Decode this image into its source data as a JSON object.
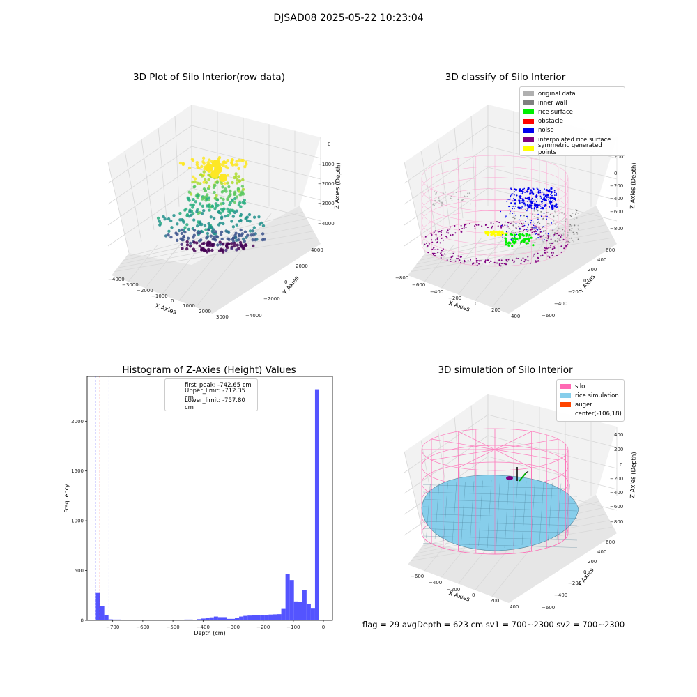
{
  "figure": {
    "suptitle": "DJSAD08 2025-05-22 10:23:04",
    "status_line": "flag = 29  avgDepth = 623 cm  sv1 = 700~2300  sv2 = 700~2300"
  },
  "panels": {
    "raw": {
      "title": "3D Plot of Silo Interior(row data)",
      "xlabel": "X Axies",
      "ylabel": "Y Axies",
      "zlabel": "Z Axies (Depth)",
      "xticks": [
        "−4000",
        "−3000",
        "−2000",
        "−1000",
        "0",
        "1000",
        "2000",
        "3000"
      ],
      "yticks": [
        "−4000",
        "−2000",
        "0",
        "2000",
        "4000"
      ],
      "zticks": [
        "0",
        "−1000",
        "−2000",
        "−3000",
        "−4000"
      ]
    },
    "classify": {
      "title": "3D classify of Silo Interior",
      "xlabel": "X Axies",
      "ylabel": "Y Axies",
      "zlabel": "Z Axies (Depth)",
      "xticks": [
        "−800",
        "−600",
        "−400",
        "−200",
        "0",
        "200",
        "400"
      ],
      "yticks": [
        "−600",
        "−400",
        "−200",
        "0",
        "200",
        "400",
        "600"
      ],
      "zticks": [
        "200",
        "0",
        "−200",
        "−400",
        "−600",
        "−800"
      ],
      "legend": [
        {
          "label": "original data",
          "color": "#b0b0b0"
        },
        {
          "label": "inner wall",
          "color": "#808080"
        },
        {
          "label": "rice surface",
          "color": "#00ee00"
        },
        {
          "label": "obstacle",
          "color": "#ff0000"
        },
        {
          "label": "noise",
          "color": "#0000ee"
        },
        {
          "label": "interpolated rice surface",
          "color": "#800080"
        },
        {
          "label": "symmetric generated points",
          "color": "#ffff00"
        }
      ]
    },
    "histogram": {
      "title": "Histogram of Z-Axies (Height) Values",
      "xlabel": "Depth (cm)",
      "ylabel": "Frequency",
      "xticks": [
        "−700",
        "−600",
        "−500",
        "−400",
        "−300",
        "−200",
        "−100",
        "0"
      ],
      "yticks": [
        "0",
        "500",
        "1000",
        "1500",
        "2000"
      ],
      "legend": [
        {
          "label": "first_peak: -742.65 cm",
          "color": "#ff0000"
        },
        {
          "label": "Upper_limit: -712.35 cm",
          "color": "#0000ff"
        },
        {
          "label": "Lower_limit: -757.80 cm",
          "color": "#0000ff"
        }
      ]
    },
    "simulation": {
      "title": "3D simulation of Silo Interior",
      "xlabel": "X Axies",
      "ylabel": "Y Axies",
      "zlabel": "Z Axies (Depth)",
      "xticks": [
        "−600",
        "−400",
        "−200",
        "0",
        "200",
        "400"
      ],
      "yticks": [
        "−600",
        "−400",
        "−200",
        "0",
        "200",
        "400",
        "600"
      ],
      "zticks": [
        "400",
        "200",
        "0",
        "−200",
        "−400",
        "−600",
        "−800"
      ],
      "legend": [
        {
          "label": "silo",
          "color": "#ff69b4"
        },
        {
          "label": "rice simulation",
          "color": "#87ceeb"
        },
        {
          "label": "auger",
          "color": "#ff4500"
        },
        {
          "label": "center(-106,18)",
          "color": ""
        }
      ]
    }
  },
  "chart_data": [
    {
      "type": "scatter",
      "title": "3D Plot of Silo Interior(row data)",
      "projection": "3d",
      "colormap": "viridis",
      "xlabel": "X Axies",
      "ylabel": "Y Axies",
      "zlabel": "Z Axies (Depth)",
      "xlim": [
        -4000,
        3500
      ],
      "ylim": [
        -4000,
        4000
      ],
      "zlim": [
        -4500,
        200
      ],
      "grid": true
    },
    {
      "type": "scatter",
      "title": "3D classify of Silo Interior",
      "projection": "3d",
      "xlabel": "X Axies",
      "ylabel": "Y Axies",
      "zlabel": "Z Axies (Depth)",
      "xlim": [
        -800,
        450
      ],
      "ylim": [
        -650,
        650
      ],
      "zlim": [
        -900,
        250
      ],
      "series": [
        {
          "name": "original data"
        },
        {
          "name": "inner wall"
        },
        {
          "name": "rice surface"
        },
        {
          "name": "obstacle"
        },
        {
          "name": "noise"
        },
        {
          "name": "interpolated rice surface"
        },
        {
          "name": "symmetric generated points"
        }
      ],
      "legend": "top-right",
      "grid": true
    },
    {
      "type": "bar",
      "title": "Histogram of Z-Axies (Height) Values",
      "xlabel": "Depth (cm)",
      "ylabel": "Frequency",
      "xlim": [
        -785,
        30
      ],
      "ylim": [
        0,
        2450
      ],
      "bin_width": 14,
      "bins": [
        {
          "x": -770,
          "y": 0
        },
        {
          "x": -756,
          "y": 275
        },
        {
          "x": -742,
          "y": 145
        },
        {
          "x": -728,
          "y": 55
        },
        {
          "x": -714,
          "y": 10
        },
        {
          "x": -700,
          "y": 8
        },
        {
          "x": -686,
          "y": 8
        },
        {
          "x": -672,
          "y": 2
        },
        {
          "x": -658,
          "y": 3
        },
        {
          "x": -644,
          "y": 5
        },
        {
          "x": -630,
          "y": 2
        },
        {
          "x": -616,
          "y": 2
        },
        {
          "x": -602,
          "y": 2
        },
        {
          "x": -588,
          "y": 2
        },
        {
          "x": -574,
          "y": 2
        },
        {
          "x": -560,
          "y": 2
        },
        {
          "x": -546,
          "y": 2
        },
        {
          "x": -532,
          "y": 2
        },
        {
          "x": -518,
          "y": 2
        },
        {
          "x": -504,
          "y": 2
        },
        {
          "x": -490,
          "y": 2
        },
        {
          "x": -476,
          "y": 2
        },
        {
          "x": -462,
          "y": 8
        },
        {
          "x": -448,
          "y": 8
        },
        {
          "x": -434,
          "y": 2
        },
        {
          "x": -420,
          "y": 12
        },
        {
          "x": -406,
          "y": 18
        },
        {
          "x": -392,
          "y": 22
        },
        {
          "x": -378,
          "y": 30
        },
        {
          "x": -364,
          "y": 38
        },
        {
          "x": -350,
          "y": 32
        },
        {
          "x": -336,
          "y": 32
        },
        {
          "x": -322,
          "y": 15
        },
        {
          "x": -308,
          "y": 15
        },
        {
          "x": -294,
          "y": 28
        },
        {
          "x": -280,
          "y": 38
        },
        {
          "x": -266,
          "y": 45
        },
        {
          "x": -252,
          "y": 48
        },
        {
          "x": -238,
          "y": 52
        },
        {
          "x": -224,
          "y": 55
        },
        {
          "x": -210,
          "y": 55
        },
        {
          "x": -196,
          "y": 55
        },
        {
          "x": -182,
          "y": 58
        },
        {
          "x": -168,
          "y": 60
        },
        {
          "x": -154,
          "y": 62
        },
        {
          "x": -140,
          "y": 115
        },
        {
          "x": -126,
          "y": 465
        },
        {
          "x": -112,
          "y": 405
        },
        {
          "x": -98,
          "y": 190
        },
        {
          "x": -84,
          "y": 188
        },
        {
          "x": -70,
          "y": 305
        },
        {
          "x": -56,
          "y": 168
        },
        {
          "x": -42,
          "y": 118
        },
        {
          "x": -28,
          "y": 2320
        }
      ],
      "vlines": [
        {
          "label": "first_peak: -742.65 cm",
          "x": -742.65,
          "color": "#ff0000",
          "style": "dashed"
        },
        {
          "label": "Upper_limit: -712.35 cm",
          "x": -712.35,
          "color": "#0000ff",
          "style": "dashed"
        },
        {
          "label": "Lower_limit: -757.80 cm",
          "x": -757.8,
          "color": "#0000ff",
          "style": "dashed"
        }
      ],
      "bar_color": "#4b4bff",
      "legend": "top-center"
    },
    {
      "type": "area",
      "title": "3D simulation of Silo Interior",
      "projection": "3d",
      "xlabel": "X Axies",
      "ylabel": "Y Axies",
      "zlabel": "Z Axies (Depth)",
      "xlim": [
        -700,
        450
      ],
      "ylim": [
        -650,
        650
      ],
      "zlim": [
        -900,
        450
      ],
      "series": [
        {
          "name": "silo"
        },
        {
          "name": "rice simulation"
        },
        {
          "name": "auger"
        }
      ],
      "legend": "top-right",
      "grid": true
    }
  ]
}
